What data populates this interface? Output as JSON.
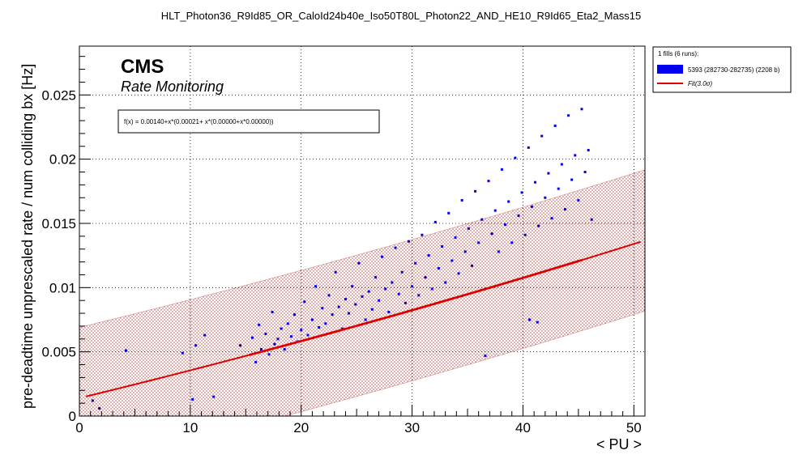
{
  "chart_data": {
    "type": "scatter",
    "title": "HLT_Photon36_R9Id85_OR_CaloId24b40e_Iso50T80L_Photon22_AND_HE10_R9Id65_Eta2_Mass15",
    "xlabel": "< PU >",
    "ylabel": "pre-deadtime unprescaled rate / num colliding bx [Hz]",
    "xlim": [
      0,
      51
    ],
    "ylim": [
      0,
      0.0288
    ],
    "x_ticks": [
      "0",
      "10",
      "20",
      "30",
      "40",
      "50"
    ],
    "y_ticks": [
      "0",
      "0.005",
      "0.01",
      "0.015",
      "0.02",
      "0.025"
    ],
    "grid": true,
    "legend_position": "top-right, outside plot",
    "annotations": {
      "experiment": "CMS",
      "subtitle": "Rate Monitoring",
      "fit_formula": "f(x) = 0.00140+x*(0.00021+ x*(0.00000+x*0.00000))"
    },
    "legend": {
      "header": "1 fills (6 runs):",
      "entries": [
        {
          "label": "5393 (282730-282735) (2208 b)",
          "kind": "marker",
          "color": "#0000ee"
        },
        {
          "label": "Fit(3.0σ)",
          "kind": "line",
          "color": "#dd0000"
        }
      ]
    },
    "fit": {
      "p0": 0.0014,
      "p1": 0.00021,
      "p2": 6e-07,
      "p3": 0.0,
      "band_sigma": 3.0,
      "band_halfwidth": [
        [
          0,
          0.0055
        ],
        [
          51,
          0.0055
        ]
      ],
      "x_range": [
        0.6,
        51
      ],
      "highlight_range": [
        15.3,
        45.5
      ]
    },
    "series": [
      {
        "name": "5393 (282730-282735) (2208 b)",
        "color": "#0000ee",
        "points": [
          [
            1.2,
            0.0012
          ],
          [
            1.8,
            0.0006
          ],
          [
            4.2,
            0.0051
          ],
          [
            9.3,
            0.0049
          ],
          [
            10.2,
            0.0013
          ],
          [
            10.5,
            0.0055
          ],
          [
            11.3,
            0.0063
          ],
          [
            12.1,
            0.0015
          ],
          [
            14.5,
            0.0055
          ],
          [
            15.6,
            0.0061
          ],
          [
            15.9,
            0.0042
          ],
          [
            16.2,
            0.0071
          ],
          [
            16.4,
            0.0052
          ],
          [
            16.8,
            0.0064
          ],
          [
            17.1,
            0.0048
          ],
          [
            17.4,
            0.0081
          ],
          [
            17.6,
            0.0056
          ],
          [
            17.9,
            0.006
          ],
          [
            18.2,
            0.0068
          ],
          [
            18.5,
            0.0052
          ],
          [
            18.8,
            0.0072
          ],
          [
            19.1,
            0.0062
          ],
          [
            19.4,
            0.0079
          ],
          [
            19.7,
            0.0058
          ],
          [
            20.0,
            0.0067
          ],
          [
            20.3,
            0.0089
          ],
          [
            20.6,
            0.0063
          ],
          [
            21.0,
            0.0075
          ],
          [
            21.3,
            0.0101
          ],
          [
            21.6,
            0.0069
          ],
          [
            21.9,
            0.0084
          ],
          [
            22.2,
            0.0072
          ],
          [
            22.5,
            0.0094
          ],
          [
            22.8,
            0.0079
          ],
          [
            23.1,
            0.0112
          ],
          [
            23.4,
            0.0085
          ],
          [
            23.7,
            0.0068
          ],
          [
            24.0,
            0.0091
          ],
          [
            24.3,
            0.008
          ],
          [
            24.6,
            0.0101
          ],
          [
            24.9,
            0.0087
          ],
          [
            25.2,
            0.0119
          ],
          [
            25.5,
            0.0093
          ],
          [
            25.8,
            0.0075
          ],
          [
            26.1,
            0.0097
          ],
          [
            26.4,
            0.0083
          ],
          [
            26.7,
            0.0108
          ],
          [
            27.0,
            0.009
          ],
          [
            27.3,
            0.0124
          ],
          [
            27.6,
            0.0099
          ],
          [
            27.9,
            0.0081
          ],
          [
            28.2,
            0.0104
          ],
          [
            28.5,
            0.0131
          ],
          [
            28.8,
            0.0095
          ],
          [
            29.1,
            0.0112
          ],
          [
            29.4,
            0.0088
          ],
          [
            29.7,
            0.0136
          ],
          [
            30.0,
            0.0101
          ],
          [
            30.3,
            0.0119
          ],
          [
            30.6,
            0.0094
          ],
          [
            30.9,
            0.0141
          ],
          [
            31.2,
            0.0108
          ],
          [
            31.5,
            0.0125
          ],
          [
            31.8,
            0.0099
          ],
          [
            32.1,
            0.0151
          ],
          [
            32.4,
            0.0115
          ],
          [
            32.7,
            0.0132
          ],
          [
            33.0,
            0.0104
          ],
          [
            33.3,
            0.0158
          ],
          [
            33.6,
            0.0121
          ],
          [
            33.9,
            0.0139
          ],
          [
            34.2,
            0.0111
          ],
          [
            34.5,
            0.0168
          ],
          [
            34.8,
            0.0128
          ],
          [
            35.1,
            0.0146
          ],
          [
            35.4,
            0.0117
          ],
          [
            35.7,
            0.0175
          ],
          [
            36.0,
            0.0135
          ],
          [
            36.3,
            0.0153
          ],
          [
            36.6,
            0.0047
          ],
          [
            36.9,
            0.0183
          ],
          [
            37.2,
            0.0142
          ],
          [
            37.5,
            0.016
          ],
          [
            37.8,
            0.0128
          ],
          [
            38.1,
            0.0192
          ],
          [
            38.4,
            0.0149
          ],
          [
            38.7,
            0.0167
          ],
          [
            39.0,
            0.0135
          ],
          [
            39.3,
            0.0201
          ],
          [
            39.6,
            0.0156
          ],
          [
            39.9,
            0.0174
          ],
          [
            40.2,
            0.0141
          ],
          [
            40.5,
            0.0209
          ],
          [
            40.8,
            0.0163
          ],
          [
            41.1,
            0.0182
          ],
          [
            41.4,
            0.0148
          ],
          [
            41.7,
            0.0218
          ],
          [
            42.0,
            0.017
          ],
          [
            42.3,
            0.0189
          ],
          [
            42.6,
            0.0154
          ],
          [
            42.9,
            0.0226
          ],
          [
            43.2,
            0.0177
          ],
          [
            43.5,
            0.0196
          ],
          [
            43.8,
            0.0161
          ],
          [
            44.1,
            0.0234
          ],
          [
            44.4,
            0.0184
          ],
          [
            44.7,
            0.0203
          ],
          [
            45.0,
            0.0168
          ],
          [
            45.3,
            0.0239
          ],
          [
            45.6,
            0.019
          ],
          [
            45.9,
            0.0207
          ],
          [
            46.2,
            0.0153
          ],
          [
            40.6,
            0.0075
          ],
          [
            41.3,
            0.0073
          ]
        ]
      }
    ]
  }
}
